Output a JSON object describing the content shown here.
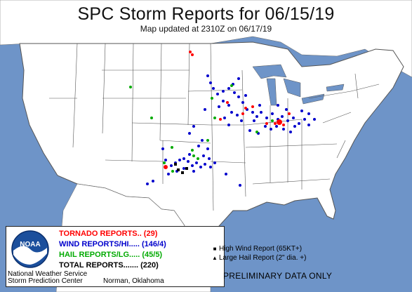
{
  "header": {
    "title": "SPC Storm Reports for 06/15/19",
    "subtitle": "Map updated at 2310Z on 06/17/19"
  },
  "legend": {
    "tornado": "TORNADO REPORTS.. (29)",
    "wind": "WIND REPORTS/HI..... (146/4)",
    "hail": "HAIL REPORTS/LG..... (45/5)",
    "total": "TOTAL REPORTS....... (220)",
    "logo_text": "NOAA",
    "footer_org1": "National Weather Service",
    "footer_org2": "Storm Prediction Center",
    "footer_location": "Norman, Oklahoma"
  },
  "key": {
    "high_wind": "High Wind Report (65KT+)",
    "large_hail": "Large Hail Report (2\" dia. +)"
  },
  "notice": "PRELIMINARY DATA ONLY",
  "colors": {
    "tornado": "#ff0000",
    "wind": "#0000cc",
    "hail": "#00aa00",
    "land": "#ffffff",
    "water": "#6e94c8"
  }
}
